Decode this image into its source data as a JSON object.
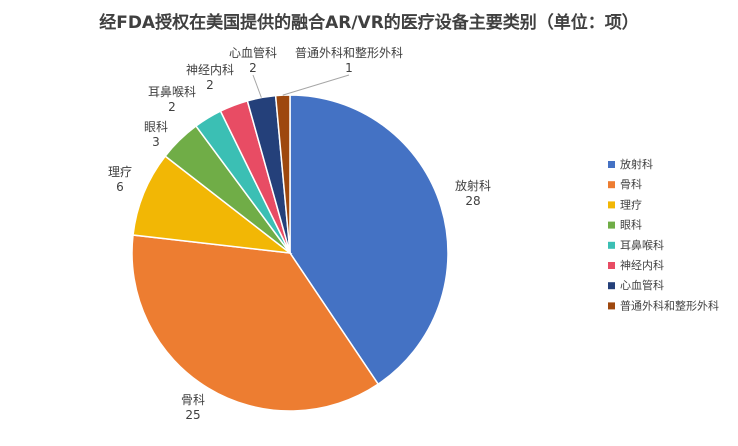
{
  "chart_data": {
    "type": "pie",
    "title": "经FDA授权在美国提供的融合AR/VR的医疗设备主要类别（单位：项）",
    "categories": [
      "放射科",
      "骨科",
      "理疗",
      "眼科",
      "耳鼻喉科",
      "神经内科",
      "心血管科",
      "普通外科和整形外科"
    ],
    "values": [
      28,
      25,
      6,
      3,
      2,
      2,
      2,
      1
    ],
    "colors": [
      "#4472C4",
      "#ED7D31",
      "#F2B705",
      "#70AD47",
      "#3BBFB4",
      "#E84C64",
      "#24407A",
      "#9E480E"
    ],
    "legend_position": "right",
    "data_labels": "category-and-value, outside"
  }
}
